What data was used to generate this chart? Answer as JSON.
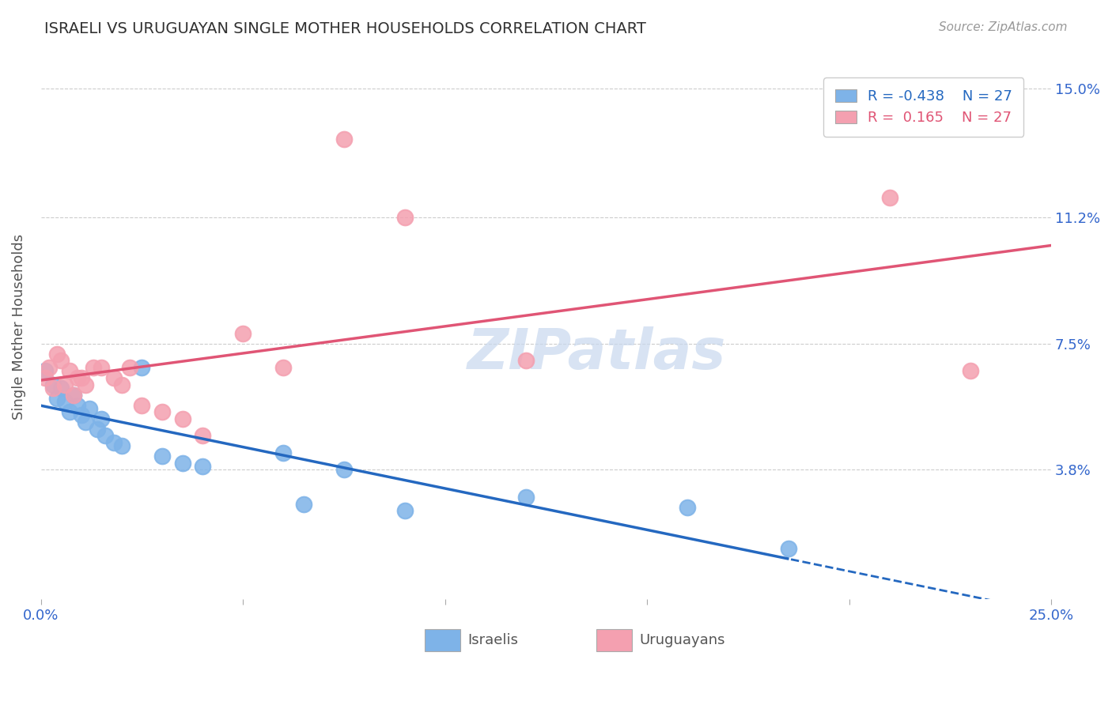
{
  "title": "ISRAELI VS URUGUAYAN SINGLE MOTHER HOUSEHOLDS CORRELATION CHART",
  "source": "Source: ZipAtlas.com",
  "ylabel": "Single Mother Households",
  "xlim": [
    0.0,
    0.25
  ],
  "ylim": [
    0.0,
    0.16
  ],
  "yticks": [
    0.038,
    0.075,
    0.112,
    0.15
  ],
  "ytick_labels": [
    "3.8%",
    "7.5%",
    "11.2%",
    "15.0%"
  ],
  "xticks": [
    0.0,
    0.05,
    0.1,
    0.15,
    0.2,
    0.25
  ],
  "xtick_labels": [
    "0.0%",
    "",
    "",
    "",
    "",
    "25.0%"
  ],
  "watermark": "ZIPatlas",
  "legend_r_israeli": "-0.438",
  "legend_r_uruguayan": " 0.165",
  "legend_n_israeli": "27",
  "legend_n_uruguayan": "27",
  "israeli_color": "#7EB3E8",
  "uruguayan_color": "#F4A0B0",
  "israeli_line_color": "#2468C0",
  "uruguayan_line_color": "#E05575",
  "background_color": "#FFFFFF",
  "title_color": "#303030",
  "tick_label_color": "#3366CC",
  "israeli_x": [
    0.001,
    0.003,
    0.004,
    0.005,
    0.006,
    0.007,
    0.008,
    0.009,
    0.01,
    0.011,
    0.012,
    0.014,
    0.015,
    0.016,
    0.018,
    0.02,
    0.025,
    0.03,
    0.035,
    0.04,
    0.06,
    0.065,
    0.075,
    0.09,
    0.12,
    0.16,
    0.185
  ],
  "israeli_y": [
    0.067,
    0.063,
    0.059,
    0.062,
    0.058,
    0.055,
    0.06,
    0.057,
    0.054,
    0.052,
    0.056,
    0.05,
    0.053,
    0.048,
    0.046,
    0.045,
    0.068,
    0.042,
    0.04,
    0.039,
    0.043,
    0.028,
    0.038,
    0.026,
    0.03,
    0.027,
    0.015
  ],
  "uruguayan_x": [
    0.001,
    0.002,
    0.003,
    0.004,
    0.005,
    0.006,
    0.007,
    0.008,
    0.009,
    0.01,
    0.011,
    0.013,
    0.015,
    0.018,
    0.02,
    0.022,
    0.025,
    0.03,
    0.035,
    0.04,
    0.05,
    0.06,
    0.075,
    0.09,
    0.12,
    0.21,
    0.23
  ],
  "uruguayan_y": [
    0.065,
    0.068,
    0.062,
    0.072,
    0.07,
    0.063,
    0.067,
    0.06,
    0.065,
    0.065,
    0.063,
    0.068,
    0.068,
    0.065,
    0.063,
    0.068,
    0.057,
    0.055,
    0.053,
    0.048,
    0.078,
    0.068,
    0.135,
    0.112,
    0.07,
    0.118,
    0.067
  ],
  "legend_label_israelis": "Israelis",
  "legend_label_uruguayans": "Uruguayans"
}
